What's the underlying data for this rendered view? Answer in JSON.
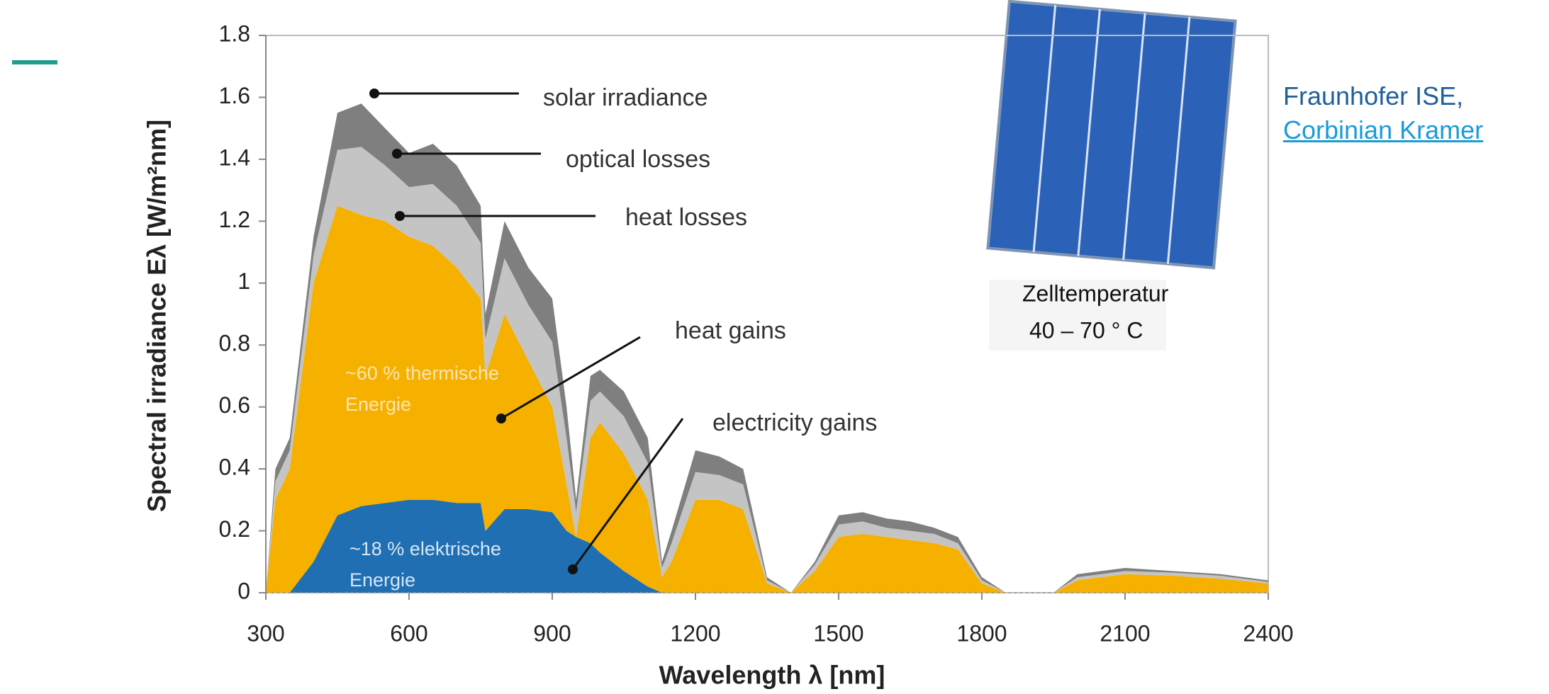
{
  "chart_data": {
    "type": "stacked-area",
    "x_label": "Wavelength λ [nm]",
    "y_label": "Spectral irradiance Eλ [W/m²nm]",
    "total_label": "solar irradiance",
    "xlim": [
      300,
      2400
    ],
    "xticks": [
      300,
      600,
      900,
      1200,
      1500,
      1800,
      2100,
      2400
    ],
    "ylim": [
      0,
      1.8
    ],
    "yticks": [
      0,
      0.2,
      0.4,
      0.6,
      0.8,
      1,
      1.2,
      1.4,
      1.6,
      1.8
    ],
    "x": [
      300,
      320,
      350,
      400,
      450,
      500,
      550,
      600,
      650,
      700,
      750,
      760,
      800,
      850,
      900,
      930,
      950,
      980,
      1000,
      1050,
      1100,
      1130,
      1150,
      1200,
      1250,
      1300,
      1350,
      1400,
      1450,
      1500,
      1550,
      1600,
      1650,
      1700,
      1750,
      1800,
      1850,
      1900,
      1950,
      2000,
      2050,
      2100,
      2200,
      2300,
      2400
    ],
    "series": [
      {
        "name": "electricity gains",
        "color": "#1f6fb2",
        "values": [
          0,
          0,
          0,
          0.1,
          0.25,
          0.28,
          0.29,
          0.3,
          0.3,
          0.29,
          0.29,
          0.2,
          0.27,
          0.27,
          0.26,
          0.2,
          0.18,
          0.16,
          0.13,
          0.07,
          0.02,
          0,
          0,
          0,
          0,
          0,
          0,
          0,
          0,
          0,
          0,
          0,
          0,
          0,
          0,
          0,
          0,
          0,
          0,
          0,
          0,
          0,
          0,
          0,
          0
        ]
      },
      {
        "name": "heat gains",
        "color": "#f5b000",
        "values": [
          0,
          0.3,
          0.4,
          0.9,
          1.0,
          0.94,
          0.91,
          0.85,
          0.82,
          0.76,
          0.66,
          0.5,
          0.63,
          0.48,
          0.34,
          0.15,
          0,
          0.34,
          0.42,
          0.38,
          0.28,
          0.05,
          0.1,
          0.3,
          0.3,
          0.27,
          0.03,
          0,
          0.07,
          0.18,
          0.19,
          0.18,
          0.17,
          0.16,
          0.14,
          0.03,
          0,
          0,
          0,
          0.04,
          0.05,
          0.06,
          0.055,
          0.045,
          0.03
        ]
      },
      {
        "name": "heat losses",
        "color": "#c4c4c4",
        "values": [
          0,
          0.06,
          0.06,
          0.09,
          0.18,
          0.22,
          0.18,
          0.16,
          0.2,
          0.2,
          0.18,
          0.12,
          0.18,
          0.18,
          0.21,
          0.15,
          0.08,
          0.12,
          0.1,
          0.12,
          0.12,
          0.03,
          0.06,
          0.09,
          0.08,
          0.08,
          0.01,
          0,
          0.02,
          0.04,
          0.04,
          0.03,
          0.03,
          0.03,
          0.02,
          0.01,
          0,
          0,
          0,
          0.01,
          0.01,
          0.01,
          0.01,
          0.01,
          0.005
        ]
      },
      {
        "name": "optical losses",
        "color": "#7f7f7f",
        "values": [
          0,
          0.04,
          0.04,
          0.06,
          0.12,
          0.14,
          0.12,
          0.11,
          0.13,
          0.13,
          0.12,
          0.08,
          0.12,
          0.12,
          0.14,
          0.1,
          0.04,
          0.08,
          0.07,
          0.08,
          0.08,
          0.02,
          0.04,
          0.07,
          0.06,
          0.05,
          0.01,
          0,
          0.01,
          0.03,
          0.03,
          0.03,
          0.03,
          0.02,
          0.02,
          0.01,
          0,
          0,
          0,
          0.01,
          0.01,
          0.01,
          0.005,
          0.005,
          0.005
        ]
      }
    ],
    "area_notes": [
      [
        "~60 % thermische",
        "Energie"
      ],
      [
        "~18 % elektrische",
        "Energie"
      ]
    ]
  },
  "inset": {
    "caption": [
      "Zelltemperatur",
      "40 – 70 ° C"
    ]
  },
  "credit": {
    "text": "Fraunhofer ISE,",
    "link": "Corbinian Kramer"
  }
}
